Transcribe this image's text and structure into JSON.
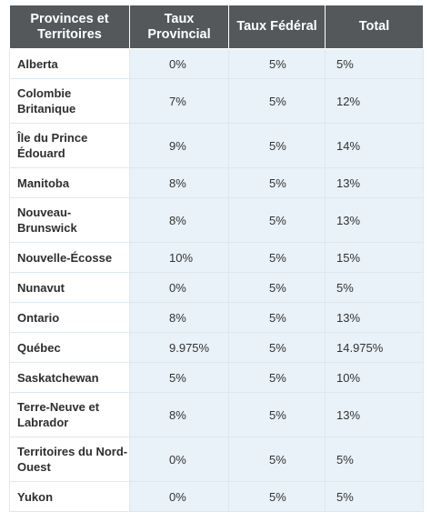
{
  "table": {
    "headers": {
      "province": "Provinces et Territoires",
      "provincial": "Taux Provincial",
      "federal": "Taux Fédéral",
      "total": "Total"
    },
    "rows": [
      {
        "province": "Alberta",
        "provincial": "0%",
        "federal": "5%",
        "total": "5%"
      },
      {
        "province": "Colombie Britanique",
        "provincial": "7%",
        "federal": "5%",
        "total": "12%"
      },
      {
        "province": "Île du Prince Édouard",
        "provincial": "9%",
        "federal": "5%",
        "total": "14%"
      },
      {
        "province": "Manitoba",
        "provincial": "8%",
        "federal": "5%",
        "total": "13%"
      },
      {
        "province": "Nouveau-Brunswick",
        "provincial": "8%",
        "federal": "5%",
        "total": "13%"
      },
      {
        "province": "Nouvelle-Écosse",
        "provincial": "10%",
        "federal": "5%",
        "total": "15%"
      },
      {
        "province": "Nunavut",
        "provincial": "0%",
        "federal": "5%",
        "total": "5%"
      },
      {
        "province": "Ontario",
        "provincial": "8%",
        "federal": "5%",
        "total": "13%"
      },
      {
        "province": "Québec",
        "provincial": "9.975%",
        "federal": "5%",
        "total": "14.975%"
      },
      {
        "province": "Saskatchewan",
        "provincial": "5%",
        "federal": "5%",
        "total": "10%"
      },
      {
        "province": "Terre-Neuve et Labrador",
        "provincial": "8%",
        "federal": "5%",
        "total": "13%"
      },
      {
        "province": "Territoires du Nord-Ouest",
        "provincial": "0%",
        "federal": "5%",
        "total": "5%"
      },
      {
        "province": "Yukon",
        "provincial": "0%",
        "federal": "5%",
        "total": "5%"
      }
    ]
  },
  "colors": {
    "header_bg": "#54585a",
    "header_text": "#ffffff",
    "value_cell_bg": "#e9f2f9",
    "province_cell_bg": "#ffffff"
  }
}
